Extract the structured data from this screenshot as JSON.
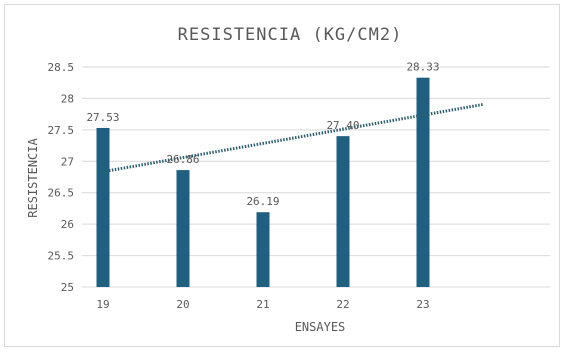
{
  "chart_data": {
    "type": "bar",
    "title": "RESISTENCIA (KG/CM2)",
    "xlabel": "ENSAYES",
    "ylabel": "RESISTENCIA",
    "categories": [
      "19",
      "20",
      "21",
      "22",
      "23"
    ],
    "values": [
      27.53,
      26.86,
      26.19,
      27.4,
      28.33
    ],
    "data_labels": [
      "27.53",
      "26.86",
      "26.19",
      "27.40",
      "28.33"
    ],
    "ylim": [
      25,
      28.5
    ],
    "yticks": [
      25,
      25.5,
      26,
      26.5,
      27,
      27.5,
      28,
      28.5
    ],
    "ytick_labels": [
      "25",
      "25.5",
      "26",
      "26.5",
      "27",
      "27.5",
      "28",
      "28.5"
    ],
    "grid": true,
    "legend": "none",
    "trendline": {
      "type": "linear",
      "style": "dotted",
      "extends_forward_periods": 1
    },
    "colors": {
      "bar": "#1f5f7f",
      "trend": "#2b5f6f",
      "grid": "#d9d9d9",
      "text": "#595959"
    }
  }
}
